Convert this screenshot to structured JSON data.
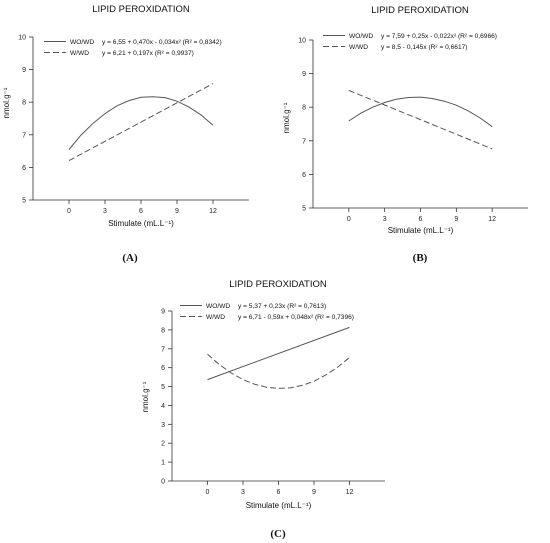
{
  "chart_data": [
    {
      "type": "line",
      "panel_label": "(A)",
      "title": "LIPID PEROXIDATION",
      "xlabel": "Stimulate (mL.L⁻¹)",
      "ylabel": "nmol.g⁻¹",
      "xticks": [
        0,
        3,
        6,
        9,
        12
      ],
      "yticks": [
        5,
        6,
        7,
        8,
        9,
        10
      ],
      "xlim": [
        -3,
        15
      ],
      "ylim": [
        5,
        10
      ],
      "grid": false,
      "legend_position": "top-left",
      "series": [
        {
          "name": "WO/WD",
          "equation": "y = 6,55 + 0,470x - 0,034x² (R² = 0,8342)",
          "style": "solid",
          "color": "#555555",
          "x": [
            0,
            1,
            2,
            3,
            4,
            5,
            6,
            7,
            8,
            9,
            10,
            11,
            12
          ],
          "y": [
            6.55,
            6.99,
            7.35,
            7.65,
            7.89,
            8.05,
            8.15,
            8.17,
            8.14,
            8.03,
            7.85,
            7.61,
            7.29
          ]
        },
        {
          "name": "W/WD",
          "equation": "y = 6,21 + 0,197x (R² = 0,9937)",
          "style": "dashed",
          "color": "#555555",
          "x": [
            0,
            12
          ],
          "y": [
            6.21,
            8.57
          ]
        }
      ]
    },
    {
      "type": "line",
      "panel_label": "(B)",
      "title": "LIPID PEROXIDATION",
      "xlabel": "Stimulate (mL.L⁻¹)",
      "ylabel": "nmol.g⁻¹",
      "xticks": [
        0,
        3,
        6,
        9,
        12
      ],
      "yticks": [
        5,
        6,
        7,
        8,
        9,
        10
      ],
      "xlim": [
        -3,
        15
      ],
      "ylim": [
        5,
        10
      ],
      "grid": false,
      "legend_position": "top-left",
      "series": [
        {
          "name": "WO/WD",
          "equation": "y = 7,59 + 0,25x - 0,022x² (R² = 0,6966)",
          "style": "solid",
          "color": "#555555",
          "x": [
            0,
            1,
            2,
            3,
            4,
            5,
            6,
            7,
            8,
            9,
            10,
            11,
            12
          ],
          "y": [
            7.59,
            7.82,
            8.0,
            8.14,
            8.24,
            8.29,
            8.3,
            8.26,
            8.18,
            8.06,
            7.89,
            7.68,
            7.42
          ]
        },
        {
          "name": "W/WD",
          "equation": "y = 8,5 - 0,145x (R² = 0,6617)",
          "style": "dashed",
          "color": "#555555",
          "x": [
            0,
            12
          ],
          "y": [
            8.5,
            6.76
          ]
        }
      ]
    },
    {
      "type": "line",
      "panel_label": "(C)",
      "title": "LIPID PEROXIDATION",
      "xlabel": "Stimulate (mL.L⁻¹)",
      "ylabel": "nmol.g⁻¹",
      "xticks": [
        0,
        3,
        6,
        9,
        12
      ],
      "yticks": [
        0,
        1,
        2,
        3,
        4,
        5,
        6,
        7,
        8,
        9
      ],
      "xlim": [
        -3,
        15
      ],
      "ylim": [
        0,
        9
      ],
      "grid": false,
      "legend_position": "top-left",
      "series": [
        {
          "name": "WO/WD",
          "equation": "y = 5,37 + 0,23x (R² = 0,7613)",
          "style": "solid",
          "color": "#555555",
          "x": [
            0,
            12
          ],
          "y": [
            5.37,
            8.13
          ]
        },
        {
          "name": "W/WD",
          "equation": "y = 6,71 - 0,59x + 0,048x² (R² = 0,7396)",
          "style": "dashed",
          "color": "#555555",
          "x": [
            0,
            1,
            2,
            3,
            4,
            5,
            6,
            7,
            8,
            9,
            10,
            11,
            12
          ],
          "y": [
            6.71,
            6.17,
            5.72,
            5.37,
            5.12,
            4.96,
            4.9,
            4.93,
            5.06,
            5.28,
            5.61,
            6.03,
            6.54
          ]
        }
      ]
    }
  ]
}
